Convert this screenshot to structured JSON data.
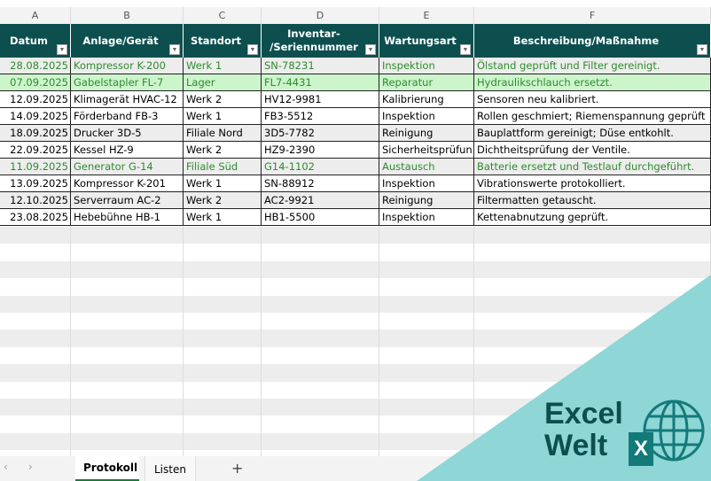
{
  "columns": [
    "A",
    "B",
    "C",
    "D",
    "E",
    "F"
  ],
  "headers": [
    "Datum",
    "Anlage/Gerät",
    "Standort",
    "Inventar-\n/Seriennummer",
    "Wartungsart",
    "Beschreibung/Maßnahme"
  ],
  "rows": [
    {
      "style": "gray",
      "green_text": true,
      "cells": [
        "28.08.2025",
        "Kompressor K-200",
        "Werk 1",
        "SN-78231",
        "Inspektion",
        "Ölstand geprüft und Filter gereinigt."
      ]
    },
    {
      "style": "green",
      "green_text": true,
      "cells": [
        "07.09.2025",
        "Gabelstapler FL-7",
        "Lager",
        "FL7-4431",
        "Reparatur",
        "Hydraulikschlauch ersetzt."
      ]
    },
    {
      "style": "white",
      "green_text": false,
      "cells": [
        "12.09.2025",
        "Klimagerät HVAC-12",
        "Werk 2",
        "HV12-9981",
        "Kalibrierung",
        "Sensoren neu kalibriert."
      ]
    },
    {
      "style": "white",
      "green_text": false,
      "cells": [
        "14.09.2025",
        "Förderband FB-3",
        "Werk 1",
        "FB3-5512",
        "Inspektion",
        "Rollen geschmiert; Riemenspannung geprüft"
      ]
    },
    {
      "style": "gray",
      "green_text": false,
      "cells": [
        "18.09.2025",
        "Drucker 3D-5",
        "Filiale Nord",
        "3D5-7782",
        "Reinigung",
        "Bauplattform gereinigt; Düse entkohlt."
      ]
    },
    {
      "style": "white",
      "green_text": false,
      "cells": [
        "22.09.2025",
        "Kessel HZ-9",
        "Werk 2",
        "HZ9-2390",
        "Sicherheitsprüfun",
        "Dichtheitsprüfung der Ventile."
      ]
    },
    {
      "style": "gray",
      "green_text": true,
      "cells": [
        "11.09.2025",
        "Generator G-14",
        "Filiale Süd",
        "G14-1102",
        "Austausch",
        "Batterie ersetzt und Testlauf durchgeführt."
      ]
    },
    {
      "style": "white",
      "green_text": false,
      "cells": [
        "13.09.2025",
        "Kompressor K-201",
        "Werk 1",
        "SN-88912",
        "Inspektion",
        "Vibrationswerte protokolliert."
      ]
    },
    {
      "style": "gray",
      "green_text": false,
      "cells": [
        "12.10.2025",
        "Serverraum AC-2",
        "Werk 2",
        "AC2-9921",
        "Reinigung",
        "Filtermatten getauscht."
      ]
    },
    {
      "style": "white",
      "green_text": false,
      "cells": [
        "23.08.2025",
        "Hebebühne HB-1",
        "Werk 1",
        "HB1-5500",
        "Inspektion",
        "Kettenabnutzung geprüft."
      ]
    }
  ],
  "tabs": {
    "active": "Protokoll",
    "other": "Listen",
    "add": "+",
    "prev": "‹",
    "next": "›"
  },
  "logo": {
    "line1": "Excel",
    "line2": "Welt",
    "badge": "X"
  },
  "colors": {
    "header": "#0d4f4f",
    "green_text": "#2e8b2e",
    "green_row": "#ccf5cc",
    "teal": "#8fd6d6"
  }
}
